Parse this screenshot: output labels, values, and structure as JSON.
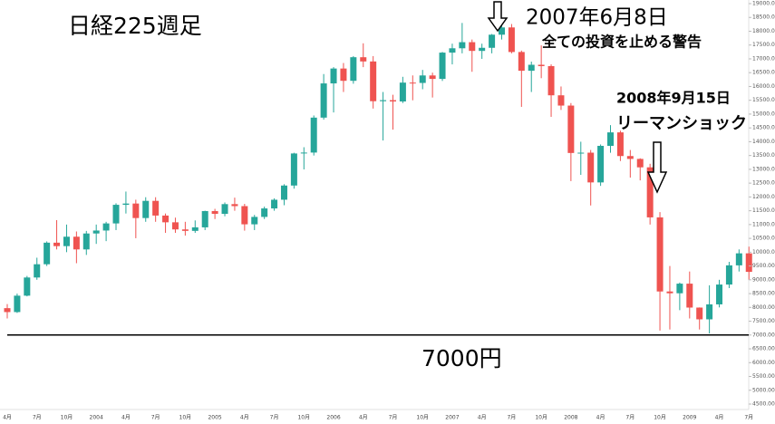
{
  "chart_data": {
    "type": "candlestick",
    "title": "日経225週足",
    "annotations": [
      "2007年6月8日",
      "全ての投資を止める警告",
      "2008年9月15日",
      "リーマンショック"
    ],
    "hline": {
      "value": 7000,
      "label": "7000円"
    },
    "up_color": "#26a69a",
    "down_color": "#ef5350",
    "categories": [
      "4月",
      null,
      null,
      "7月",
      null,
      null,
      "10月",
      null,
      null,
      "2004",
      null,
      null,
      "4月",
      null,
      null,
      "7月",
      null,
      null,
      "10月",
      null,
      null,
      "2005",
      null,
      null,
      "4月",
      null,
      null,
      "7月",
      null,
      null,
      "10月",
      null,
      null,
      "2006",
      null,
      null,
      "4月",
      null,
      null,
      "7月",
      null,
      null,
      "10月",
      null,
      null,
      "2007",
      null,
      null,
      "4月",
      null,
      null,
      "7月",
      null,
      null,
      "10月",
      null,
      null,
      "2008",
      null,
      null,
      "4月",
      null,
      null,
      "7月",
      null,
      null,
      "10月",
      null,
      null,
      "2009",
      null,
      null,
      "4月",
      null,
      null,
      "7月"
    ],
    "open": [
      7973,
      7831,
      8425,
      9083,
      9563,
      10344,
      10219,
      10560,
      10100,
      10677,
      10784,
      11041,
      11715,
      11761,
      11236,
      11858,
      11326,
      11082,
      10824,
      10771,
      10899,
      11489,
      11388,
      11740,
      11668,
      11009,
      11277,
      11584,
      11899,
      12413,
      13574,
      13607,
      14872,
      16111,
      16650,
      16205,
      17059,
      16906,
      15467,
      15505,
      15457,
      16140,
      16128,
      16399,
      16274,
      17226,
      17383,
      17604,
      17288,
      17400,
      17875,
      18138,
      17248,
      16569,
      16786,
      16737,
      15680,
      15308,
      13592,
      13603,
      12526,
      13850,
      14338,
      13481,
      13377,
      13072,
      11260,
      8577,
      8512,
      8860,
      7994,
      7568,
      8110,
      8828,
      9523,
      9958
    ],
    "high": [
      8120,
      8500,
      9140,
      9800,
      10390,
      11160,
      11000,
      10750,
      10770,
      11000,
      11100,
      11770,
      12195,
      11900,
      11990,
      11990,
      11400,
      11250,
      11100,
      11150,
      11500,
      11570,
      11800,
      11975,
      11750,
      11350,
      11650,
      11950,
      12460,
      13600,
      13800,
      14950,
      16450,
      16700,
      16850,
      17100,
      17563,
      17100,
      15800,
      15700,
      16350,
      16400,
      16600,
      16500,
      17250,
      17550,
      18300,
      17700,
      17550,
      17900,
      18297,
      18262,
      17300,
      16900,
      17488,
      16800,
      16000,
      15400,
      14000,
      13700,
      13900,
      14600,
      14400,
      13700,
      13400,
      13200,
      11450,
      9500,
      8900,
      9300,
      8000,
      8800,
      9000,
      9650,
      10100,
      10200
    ],
    "low": [
      7600,
      7800,
      8400,
      9000,
      9500,
      10100,
      10000,
      9600,
      9900,
      10300,
      10400,
      10800,
      11400,
      10505,
      11100,
      11100,
      10700,
      10700,
      10600,
      10700,
      10800,
      11200,
      11300,
      11500,
      10780,
      10800,
      11200,
      11500,
      11700,
      12300,
      12996,
      13500,
      14800,
      15059,
      15800,
      16100,
      16700,
      15200,
      14045,
      14437,
      15400,
      15500,
      15900,
      15600,
      16200,
      16800,
      17200,
      16532,
      17000,
      17200,
      17700,
      17200,
      15262,
      15800,
      16300,
      14900,
      15150,
      12573,
      12800,
      11691,
      12400,
      13600,
      13300,
      12700,
      12600,
      11000,
      7162,
      7200,
      7900,
      7600,
      7200,
      7055,
      8000,
      8700,
      9300,
      9000
    ],
    "close": [
      7831,
      8425,
      9083,
      9563,
      10344,
      10219,
      10560,
      10100,
      10677,
      10784,
      11041,
      11715,
      11761,
      11236,
      11858,
      11326,
      11082,
      10824,
      10771,
      10899,
      11489,
      11388,
      11740,
      11668,
      11009,
      11277,
      11584,
      11899,
      12413,
      13574,
      13607,
      14872,
      16111,
      16650,
      16205,
      17059,
      16906,
      15467,
      15505,
      15457,
      16140,
      16128,
      16399,
      16274,
      17226,
      17383,
      17604,
      17288,
      17400,
      17875,
      18138,
      17248,
      16569,
      16786,
      16737,
      15680,
      15308,
      13592,
      13603,
      12526,
      13850,
      14338,
      13481,
      13377,
      13072,
      11260,
      8577,
      8512,
      8860,
      7994,
      7568,
      8110,
      8828,
      9523,
      9958,
      9287
    ],
    "ylim": [
      4500,
      19000
    ],
    "yticks": [
      {
        "value": 4500,
        "label": "4500.00"
      },
      {
        "value": 5000,
        "label": "5000.00"
      },
      {
        "value": 5500,
        "label": "5500.00"
      },
      {
        "value": 6000,
        "label": "6000.00"
      },
      {
        "value": 6500,
        "label": "6500.00"
      },
      {
        "value": 7000,
        "label": "7000.00"
      },
      {
        "value": 7500,
        "label": "7500.00"
      },
      {
        "value": 8000,
        "label": "8000.00"
      },
      {
        "value": 8500,
        "label": "8500.00"
      },
      {
        "value": 9000,
        "label": "9000.00"
      },
      {
        "value": 9500,
        "label": "9500.00"
      },
      {
        "value": 10000,
        "label": "10000.00"
      },
      {
        "value": 10500,
        "label": "10500.00"
      },
      {
        "value": 11000,
        "label": "11000.00"
      },
      {
        "value": 11500,
        "label": "11500.00"
      },
      {
        "value": 12000,
        "label": "12000.00"
      },
      {
        "value": 12500,
        "label": "12500.00"
      },
      {
        "value": 13000,
        "label": "13000.00"
      },
      {
        "value": 13500,
        "label": "13500.00"
      },
      {
        "value": 14000,
        "label": "14000.00"
      },
      {
        "value": 14500,
        "label": "14500.00"
      },
      {
        "value": 15000,
        "label": "15000.00"
      },
      {
        "value": 15500,
        "label": "15500.00"
      },
      {
        "value": 16000,
        "label": "16000.00"
      },
      {
        "value": 16500,
        "label": "16500.00"
      },
      {
        "value": 17000,
        "label": "17000.00"
      },
      {
        "value": 17500,
        "label": "17500.00"
      },
      {
        "value": 18000,
        "label": "18000.00"
      },
      {
        "value": 18500,
        "label": "18500.00"
      },
      {
        "value": 19000,
        "label": "19000.00"
      }
    ]
  }
}
